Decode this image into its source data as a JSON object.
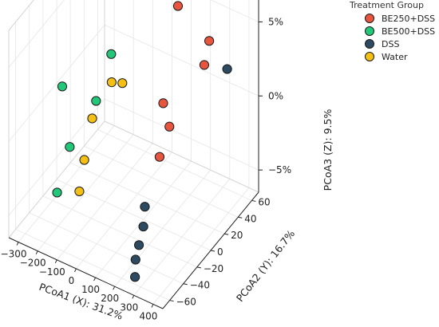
{
  "chart_data": {
    "type": "scatter",
    "projection": "3d",
    "legend": {
      "title": "Treatment Group",
      "placement": "top-right",
      "entries": [
        "BE250+DSS",
        "BE500+DSS",
        "DSS",
        "Water"
      ]
    },
    "axes": {
      "x": {
        "label": "PCoA1 (X): 31.2%",
        "ticks": [
          "−300",
          "−200",
          "−100",
          "0",
          "100",
          "200",
          "300",
          "400"
        ]
      },
      "y": {
        "label": "PCoA2 (Y): 16.7%",
        "ticks": [
          "−60",
          "−40",
          "−20",
          "0",
          "20",
          "40",
          "60"
        ]
      },
      "z": {
        "label": "PCoA3 (Z): 9.5%",
        "ticks": [
          "−5%",
          "0%",
          "5%"
        ]
      }
    },
    "grid": true,
    "series": [
      {
        "name": "BE250+DSS",
        "color": "#e8553f",
        "points": [
          {
            "x": 120,
            "y": 45,
            "z": 5.5
          },
          {
            "x": 150,
            "y": 15,
            "z": 0.8
          },
          {
            "x": 200,
            "y": 10,
            "z": -0.2
          },
          {
            "x": 220,
            "y": -10,
            "z": -1.0
          },
          {
            "x": 300,
            "y": 40,
            "z": 4.5
          },
          {
            "x": 310,
            "y": 30,
            "z": 3.5
          }
        ]
      },
      {
        "name": "BE500+DSS",
        "color": "#22c77a",
        "points": [
          {
            "x": -250,
            "y": -20,
            "z": 1.5
          },
          {
            "x": -120,
            "y": 15,
            "z": 2.5
          },
          {
            "x": -110,
            "y": -10,
            "z": 0.8
          },
          {
            "x": -140,
            "y": -40,
            "z": -0.8
          },
          {
            "x": -170,
            "y": -50,
            "z": -3.5
          }
        ]
      },
      {
        "name": "DSS",
        "color": "#2d4a60",
        "points": [
          {
            "x": 340,
            "y": 55,
            "z": 2.0
          },
          {
            "x": 250,
            "y": -40,
            "z": -2.5
          },
          {
            "x": 260,
            "y": -45,
            "z": -3.5
          },
          {
            "x": 255,
            "y": -50,
            "z": -4.5
          },
          {
            "x": 255,
            "y": -55,
            "z": -5.2
          },
          {
            "x": 270,
            "y": -60,
            "z": -6.0
          }
        ]
      },
      {
        "name": "Water",
        "color": "#f4c015",
        "points": [
          {
            "x": -100,
            "y": 10,
            "z": 1.0
          },
          {
            "x": -80,
            "y": 20,
            "z": 0.5
          },
          {
            "x": -130,
            "y": -10,
            "z": -0.5
          },
          {
            "x": -100,
            "y": -30,
            "z": -2.0
          },
          {
            "x": -90,
            "y": -40,
            "z": -3.5
          }
        ]
      }
    ]
  }
}
